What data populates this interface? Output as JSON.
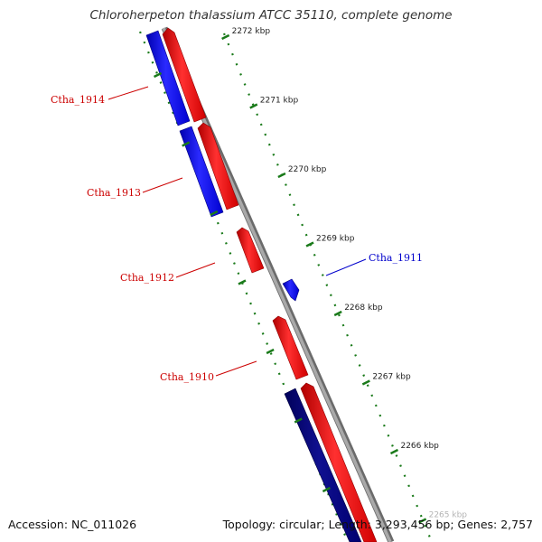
{
  "header": {
    "title": "Chloroherpeton thalassium ATCC 35110, complete genome"
  },
  "footer": {
    "accession": "Accession: NC_011026",
    "summary": "Topology: circular; Length: 3,293,456 bp; Genes: 2,757"
  },
  "colors": {
    "backbone": "#8c8c8c",
    "tick": "#1a7a1a",
    "forward_gene": "#ff0000",
    "reverse_gene": "#0000ff",
    "reverse_gene_dark": "#00008b"
  },
  "scale": {
    "ticks": [
      {
        "label": "2272 kbp",
        "kbp": 2272
      },
      {
        "label": "2271 kbp",
        "kbp": 2271
      },
      {
        "label": "2270 kbp",
        "kbp": 2270
      },
      {
        "label": "2269 kbp",
        "kbp": 2269
      },
      {
        "label": "2268 kbp",
        "kbp": 2268
      },
      {
        "label": "2267 kbp",
        "kbp": 2267
      },
      {
        "label": "2266 kbp",
        "kbp": 2266
      },
      {
        "label": "2265 kbp",
        "kbp": 2265
      }
    ]
  },
  "labels": [
    {
      "text": "Ctha_1914",
      "color": "#cc0000"
    },
    {
      "text": "Ctha_1913",
      "color": "#cc0000"
    },
    {
      "text": "Ctha_1912",
      "color": "#cc0000"
    },
    {
      "text": "Ctha_1910",
      "color": "#cc0000"
    },
    {
      "text": "Ctha_1911",
      "color": "#0000cc"
    }
  ]
}
